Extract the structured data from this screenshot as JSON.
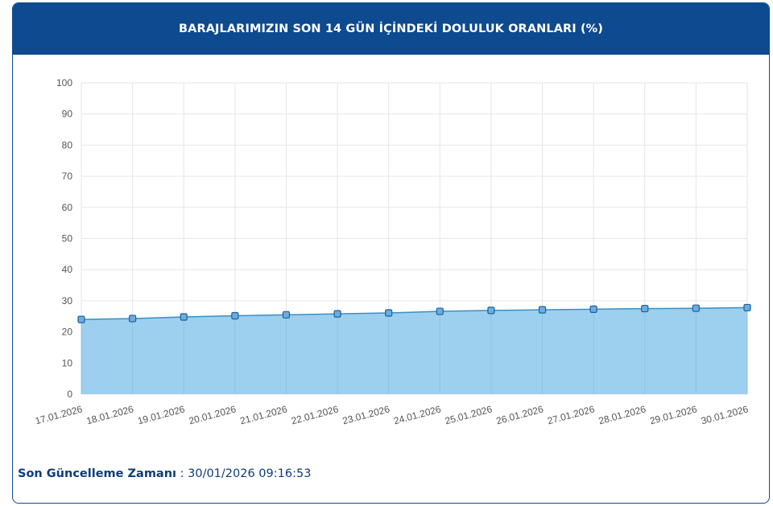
{
  "header": {
    "title": "BARAJLARIMIZIN SON 14 GÜN İÇİNDEKİ DOLULUK ORANLARI (%)"
  },
  "footer": {
    "label": "Son Güncelleme Zamanı",
    "separator": " : ",
    "value": "30/01/2026 09:16:53"
  },
  "chart_data": {
    "type": "area",
    "categories": [
      "17.01.2026",
      "18.01.2026",
      "19.01.2026",
      "20.01.2026",
      "21.01.2026",
      "22.01.2026",
      "23.01.2026",
      "24.01.2026",
      "25.01.2026",
      "26.01.2026",
      "27.01.2026",
      "28.01.2026",
      "29.01.2026",
      "30.01.2026"
    ],
    "series": [
      {
        "values": [
          24.0,
          24.3,
          24.8,
          25.2,
          25.5,
          25.8,
          26.1,
          26.6,
          26.9,
          27.1,
          27.3,
          27.5,
          27.6,
          27.8
        ]
      }
    ],
    "ylim": [
      0,
      100
    ],
    "yticks": [
      "0",
      "10",
      "20",
      "30",
      "40",
      "50",
      "60",
      "70",
      "80",
      "90",
      "100"
    ],
    "grid": true,
    "colors": {
      "fill": "#9dd0ee",
      "line": "#3a8fc6",
      "marker": "#6aaee0",
      "marker_stroke": "#1f5f9c",
      "grid": "#e6e6e6"
    }
  }
}
